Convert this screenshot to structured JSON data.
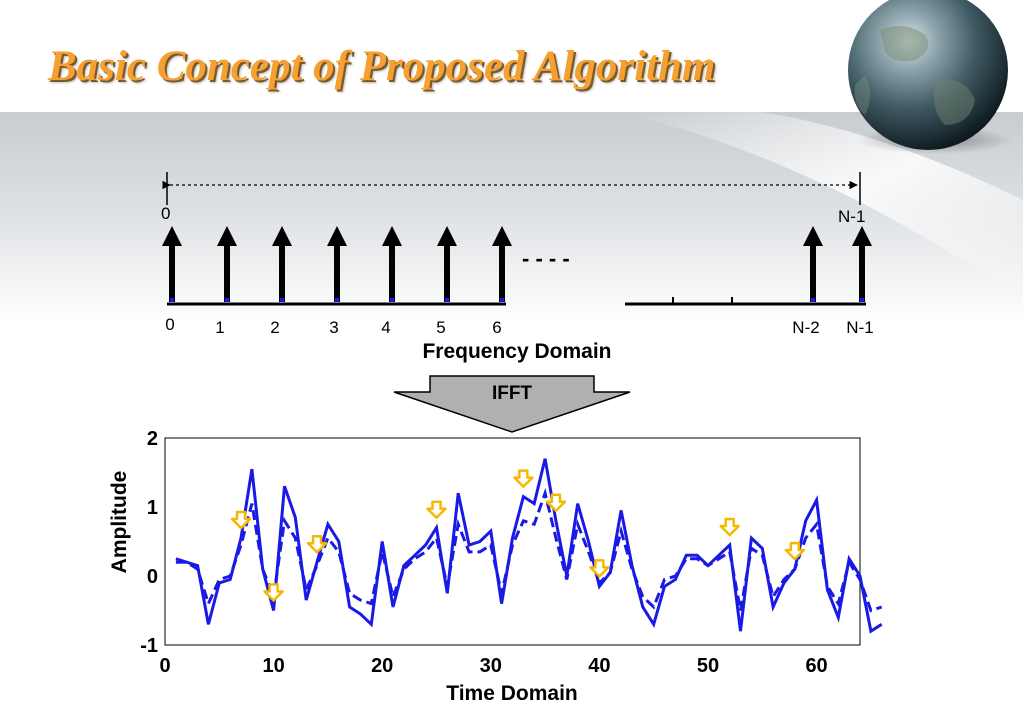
{
  "title": "Basic Concept of Proposed Algorithm",
  "colors": {
    "title": "#f5a030",
    "signal": "#1a1ae6",
    "arrow_marker": "#f5b800",
    "ifft_fill": "#b0b0b0"
  },
  "decoration": {
    "globe": "globe-icon"
  },
  "frequency_domain": {
    "span_start_label": "0",
    "span_end_label": "N-1",
    "subcarrier_labels": [
      "0",
      "1",
      "2",
      "3",
      "4",
      "5",
      "6",
      "N-2",
      "N-1"
    ],
    "ellipsis": "- - - -",
    "caption": "Frequency Domain"
  },
  "transform_label": "IFFT",
  "chart_data": {
    "type": "line",
    "xlabel": "Time Domain",
    "ylabel": "Amplitude",
    "xlim": [
      0,
      64
    ],
    "ylim": [
      -1,
      2
    ],
    "x_ticks": [
      "0",
      "10",
      "20",
      "30",
      "40",
      "50",
      "60"
    ],
    "y_ticks": [
      "-1",
      "0",
      "1",
      "2"
    ],
    "series": [
      {
        "style": "solid",
        "values": [
          0.25,
          0.2,
          0.15,
          -0.7,
          -0.1,
          -0.05,
          0.55,
          1.55,
          0.1,
          -0.5,
          1.3,
          0.85,
          -0.35,
          0.2,
          0.75,
          0.5,
          -0.45,
          -0.55,
          -0.7,
          0.5,
          -0.45,
          0.15,
          0.3,
          0.45,
          0.7,
          -0.25,
          1.2,
          0.45,
          0.5,
          0.65,
          -0.4,
          0.55,
          1.15,
          1.05,
          1.7,
          0.8,
          0.0,
          1.05,
          0.5,
          -0.15,
          0.05,
          0.95,
          0.15,
          -0.45,
          -0.7,
          -0.15,
          -0.05,
          0.3,
          0.3,
          0.15,
          0.3,
          0.45,
          -0.8,
          0.55,
          0.4,
          -0.45,
          -0.1,
          0.1,
          0.8,
          1.1,
          -0.2,
          -0.6,
          0.25,
          0.0,
          -0.8,
          -0.7
        ],
        "x_start": 1
      },
      {
        "style": "dashed",
        "values": [
          0.2,
          0.2,
          0.1,
          -0.4,
          -0.05,
          0.0,
          0.45,
          1.05,
          0.1,
          -0.3,
          0.8,
          0.55,
          -0.2,
          0.15,
          0.55,
          0.35,
          -0.25,
          -0.35,
          -0.4,
          0.35,
          -0.3,
          0.1,
          0.25,
          0.35,
          0.55,
          -0.15,
          0.75,
          0.35,
          0.35,
          0.45,
          -0.25,
          0.45,
          0.8,
          0.75,
          1.2,
          0.55,
          -0.05,
          0.75,
          0.35,
          -0.1,
          0.05,
          0.65,
          0.1,
          -0.3,
          -0.45,
          -0.05,
          0.0,
          0.25,
          0.25,
          0.15,
          0.25,
          0.35,
          -0.5,
          0.4,
          0.3,
          -0.3,
          -0.05,
          0.1,
          0.55,
          0.75,
          -0.15,
          -0.4,
          0.2,
          -0.05,
          -0.5,
          -0.45
        ],
        "x_start": 1
      }
    ],
    "peak_markers": [
      7,
      10,
      14,
      25,
      33,
      36,
      40,
      52,
      58
    ]
  }
}
